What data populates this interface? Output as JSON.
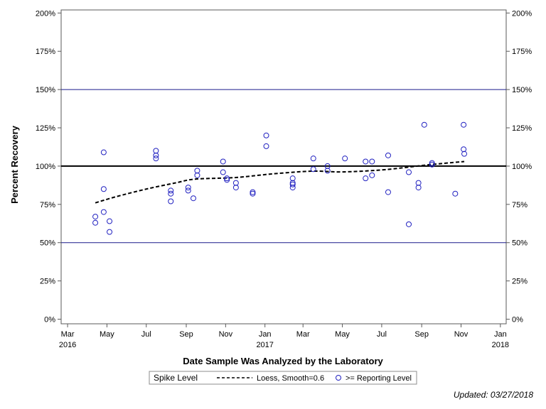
{
  "chart_data": {
    "type": "scatter",
    "xlabel": "Date Sample Was Analyzed by the Laboratory",
    "ylabel": "Percent Recovery",
    "x_ticks": [
      {
        "date": "2016-03-01",
        "label": "Mar",
        "year": "2016"
      },
      {
        "date": "2016-05-01",
        "label": "May",
        "year": ""
      },
      {
        "date": "2016-07-01",
        "label": "Jul",
        "year": ""
      },
      {
        "date": "2016-09-01",
        "label": "Sep",
        "year": ""
      },
      {
        "date": "2016-11-01",
        "label": "Nov",
        "year": ""
      },
      {
        "date": "2017-01-01",
        "label": "Jan",
        "year": "2017"
      },
      {
        "date": "2017-03-01",
        "label": "Mar",
        "year": ""
      },
      {
        "date": "2017-05-01",
        "label": "May",
        "year": ""
      },
      {
        "date": "2017-07-01",
        "label": "Jul",
        "year": ""
      },
      {
        "date": "2017-09-01",
        "label": "Sep",
        "year": ""
      },
      {
        "date": "2017-11-01",
        "label": "Nov",
        "year": ""
      },
      {
        "date": "2018-01-01",
        "label": "Jan",
        "year": "2018"
      }
    ],
    "xlim": [
      "2016-02-20",
      "2018-01-10"
    ],
    "ylim": [
      -3,
      202
    ],
    "y_ticks": [
      0,
      25,
      50,
      75,
      100,
      125,
      150,
      175,
      200
    ],
    "y_tick_labels": [
      "0%",
      "25%",
      "50%",
      "75%",
      "100%",
      "125%",
      "150%",
      "175%",
      "200%"
    ],
    "reference_lines": [
      {
        "y": 50,
        "color": "#1a1a8c",
        "style": "thin"
      },
      {
        "y": 100,
        "color": "#000000",
        "style": "thick"
      },
      {
        "y": 150,
        "color": "#1a1a8c",
        "style": "thin"
      }
    ],
    "grid": false,
    "series": [
      {
        "name": ">= Reporting Level",
        "marker": "open-circle",
        "color": "#2020c0",
        "points": [
          {
            "x": "2016-04-13",
            "y": 67
          },
          {
            "x": "2016-04-13",
            "y": 63
          },
          {
            "x": "2016-04-26",
            "y": 109
          },
          {
            "x": "2016-04-26",
            "y": 85
          },
          {
            "x": "2016-04-26",
            "y": 70
          },
          {
            "x": "2016-05-05",
            "y": 64
          },
          {
            "x": "2016-05-05",
            "y": 57
          },
          {
            "x": "2016-07-16",
            "y": 110
          },
          {
            "x": "2016-07-16",
            "y": 107
          },
          {
            "x": "2016-07-16",
            "y": 105
          },
          {
            "x": "2016-08-08",
            "y": 84
          },
          {
            "x": "2016-08-08",
            "y": 82
          },
          {
            "x": "2016-08-08",
            "y": 77
          },
          {
            "x": "2016-09-04",
            "y": 86
          },
          {
            "x": "2016-09-04",
            "y": 84
          },
          {
            "x": "2016-09-12",
            "y": 79
          },
          {
            "x": "2016-09-18",
            "y": 97
          },
          {
            "x": "2016-09-18",
            "y": 94
          },
          {
            "x": "2016-10-28",
            "y": 103
          },
          {
            "x": "2016-10-28",
            "y": 96
          },
          {
            "x": "2016-11-03",
            "y": 92
          },
          {
            "x": "2016-11-03",
            "y": 91
          },
          {
            "x": "2016-11-17",
            "y": 89
          },
          {
            "x": "2016-11-17",
            "y": 86
          },
          {
            "x": "2016-12-13",
            "y": 83
          },
          {
            "x": "2016-12-13",
            "y": 82
          },
          {
            "x": "2017-01-03",
            "y": 120
          },
          {
            "x": "2017-01-03",
            "y": 113
          },
          {
            "x": "2017-02-13",
            "y": 92
          },
          {
            "x": "2017-02-13",
            "y": 89
          },
          {
            "x": "2017-02-13",
            "y": 88
          },
          {
            "x": "2017-02-13",
            "y": 86
          },
          {
            "x": "2017-03-17",
            "y": 105
          },
          {
            "x": "2017-03-17",
            "y": 98
          },
          {
            "x": "2017-04-08",
            "y": 100
          },
          {
            "x": "2017-04-08",
            "y": 97
          },
          {
            "x": "2017-05-05",
            "y": 105
          },
          {
            "x": "2017-06-06",
            "y": 103
          },
          {
            "x": "2017-06-06",
            "y": 92
          },
          {
            "x": "2017-06-16",
            "y": 103
          },
          {
            "x": "2017-06-16",
            "y": 94
          },
          {
            "x": "2017-07-11",
            "y": 107
          },
          {
            "x": "2017-07-11",
            "y": 83
          },
          {
            "x": "2017-08-12",
            "y": 96
          },
          {
            "x": "2017-08-12",
            "y": 62
          },
          {
            "x": "2017-08-27",
            "y": 89
          },
          {
            "x": "2017-08-27",
            "y": 86
          },
          {
            "x": "2017-09-05",
            "y": 127
          },
          {
            "x": "2017-09-17",
            "y": 102
          },
          {
            "x": "2017-09-17",
            "y": 101
          },
          {
            "x": "2017-10-23",
            "y": 82
          },
          {
            "x": "2017-11-05",
            "y": 127
          },
          {
            "x": "2017-11-05",
            "y": 111
          },
          {
            "x": "2017-11-06",
            "y": 108
          }
        ]
      },
      {
        "name": "Loess, Smooth=0.6",
        "style": "dashed",
        "color": "#000000",
        "points": [
          {
            "x": "2016-04-13",
            "y": 76
          },
          {
            "x": "2016-05-15",
            "y": 80
          },
          {
            "x": "2016-07-01",
            "y": 85
          },
          {
            "x": "2016-08-15",
            "y": 89
          },
          {
            "x": "2016-09-15",
            "y": 91.5
          },
          {
            "x": "2016-11-15",
            "y": 92.5
          },
          {
            "x": "2017-01-15",
            "y": 95
          },
          {
            "x": "2017-03-15",
            "y": 96.7
          },
          {
            "x": "2017-05-01",
            "y": 96.2
          },
          {
            "x": "2017-07-01",
            "y": 97.5
          },
          {
            "x": "2017-08-15",
            "y": 99.5
          },
          {
            "x": "2017-09-15",
            "y": 101
          },
          {
            "x": "2017-11-06",
            "y": 103
          }
        ]
      }
    ],
    "legend": {
      "placement": "bottom-center",
      "entries": [
        {
          "label": "Spike Level",
          "kind": "text"
        },
        {
          "label": "Loess, Smooth=0.6",
          "kind": "dashed-line"
        },
        {
          "label": ">= Reporting Level",
          "kind": "open-circle"
        }
      ]
    },
    "footnote": "Updated: 03/27/2018"
  }
}
